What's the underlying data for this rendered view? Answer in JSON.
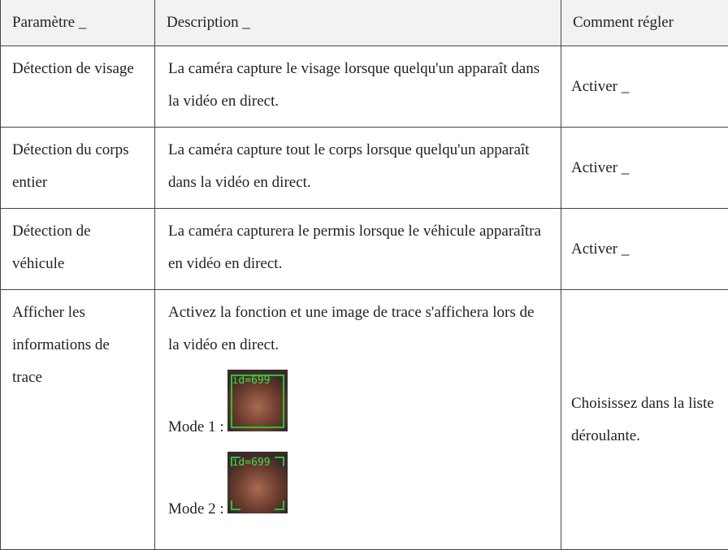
{
  "table": {
    "header": [
      "Paramètre _",
      "Description _",
      "Comment régler"
    ],
    "rows": [
      {
        "parameter": "Détection de visage",
        "description": "La caméra capture le visage lorsque quelqu'un apparaît dans la vidéo en direct.",
        "setting": "Activer _"
      },
      {
        "parameter": "Détection du corps entier",
        "description": "La caméra capture tout le corps lorsque quelqu'un apparaît dans la vidéo en direct.",
        "setting": "Activer _"
      },
      {
        "parameter": "Détection de véhicule",
        "description": "La caméra capturera le permis lorsque le véhicule apparaîtra en vidéo en direct.",
        "setting": "Activer _"
      },
      {
        "parameter": "Afficher les informations de trace",
        "description": "Activez la fonction et une image de trace s'affichera lors de la vidéo en direct.",
        "setting": "Choisissez dans la liste déroulante.",
        "modes": [
          {
            "label": "Mode 1 :",
            "image_text": "id=699"
          },
          {
            "label": "Mode 2 :",
            "image_text": "id=699"
          }
        ]
      }
    ]
  }
}
